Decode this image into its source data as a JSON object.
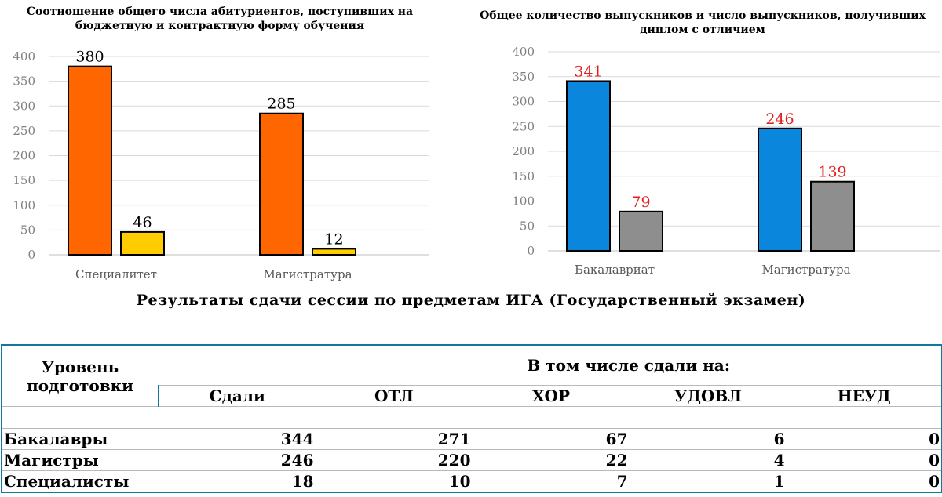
{
  "chart_data": [
    {
      "type": "bar",
      "title": "Соотношение общего числа абитуриентов, поступивших на бюджетную и контрактную форму обучения",
      "categories": [
        "Специалитет",
        "Магистратура"
      ],
      "series": [
        {
          "values": [
            380,
            285
          ],
          "color": "#ff6600",
          "label_color": "#000000"
        },
        {
          "values": [
            46,
            12
          ],
          "color": "#ffcc00",
          "label_color": "#000000"
        }
      ],
      "ylim": [
        0,
        400
      ],
      "yticks": [
        "0",
        "50",
        "100",
        "150",
        "200",
        "250",
        "300",
        "350",
        "400"
      ],
      "grid": true
    },
    {
      "type": "bar",
      "title": "Общее количество выпускников и число выпускников, получивших диплом с отличием",
      "categories": [
        "Бакалавриат",
        "Магистратура"
      ],
      "series": [
        {
          "values": [
            341,
            246
          ],
          "color": "#0a86dd",
          "label_color": "#e02020"
        },
        {
          "values": [
            79,
            139
          ],
          "color": "#8e8e8e",
          "label_color": "#e02020"
        }
      ],
      "ylim": [
        0,
        400
      ],
      "yticks": [
        "0",
        "50",
        "100",
        "150",
        "200",
        "250",
        "300",
        "350",
        "400"
      ],
      "grid": true
    }
  ],
  "section_title": "Результаты сдачи сессии по предметам ИГА  (Государственный экзамен)",
  "table": {
    "level_header": "Уровень подготовки",
    "group_header": "В том числе сдали на:",
    "columns": [
      "Сдали",
      "ОТЛ",
      "ХОР",
      "УДОВЛ",
      "НЕУД"
    ],
    "rows": [
      {
        "label": "Бакалавры",
        "values": [
          "344",
          "271",
          "67",
          "6",
          "0"
        ]
      },
      {
        "label": "Магистры",
        "values": [
          "246",
          "220",
          "22",
          "4",
          "0"
        ]
      },
      {
        "label": "Специалисты",
        "values": [
          "18",
          "10",
          "7",
          "1",
          "0"
        ]
      }
    ]
  }
}
